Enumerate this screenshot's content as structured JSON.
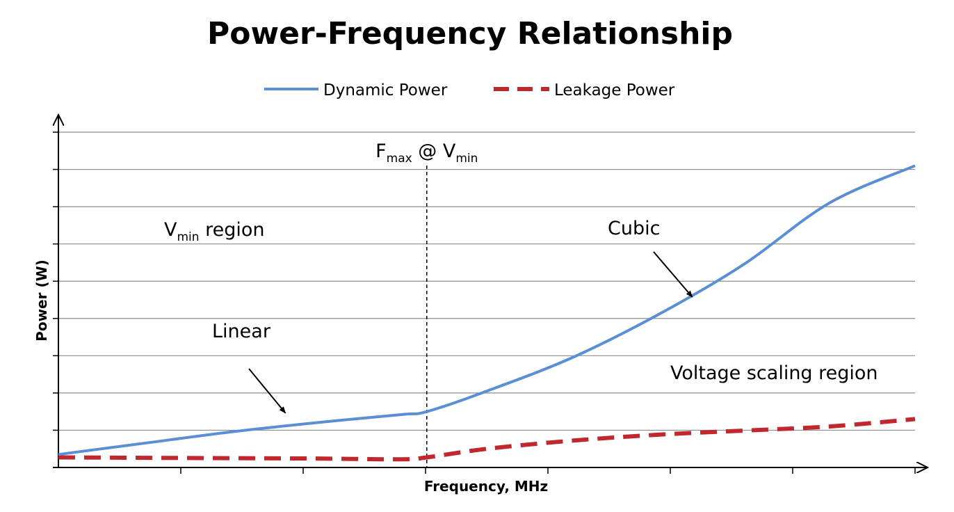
{
  "chart_data": {
    "type": "line",
    "title": "Power-Frequency Relationship",
    "xlabel": "Frequency, MHz",
    "ylabel": "Power (W)",
    "xlim": [
      0,
      1
    ],
    "ylim": [
      0,
      9
    ],
    "grid": true,
    "legend_position": "top",
    "series": [
      {
        "name": "Dynamic Power",
        "color": "#5b8fd4",
        "style": "solid",
        "x": [
          0,
          0.1,
          0.2,
          0.3,
          0.4,
          0.43,
          0.5,
          0.6,
          0.7,
          0.8,
          0.9,
          1.0
        ],
        "y": [
          0.35,
          0.65,
          0.95,
          1.2,
          1.42,
          1.5,
          2.05,
          2.95,
          4.1,
          5.45,
          7.1,
          8.1
        ]
      },
      {
        "name": "Leakage Power",
        "color": "#c0282e",
        "style": "dashed",
        "x": [
          0,
          0.1,
          0.2,
          0.3,
          0.4,
          0.43,
          0.5,
          0.6,
          0.7,
          0.8,
          0.9,
          1.0
        ],
        "y": [
          0.27,
          0.26,
          0.25,
          0.24,
          0.22,
          0.27,
          0.5,
          0.72,
          0.88,
          0.99,
          1.1,
          1.3
        ]
      }
    ],
    "reference_line": {
      "x": 0.43,
      "label_main_1": "F",
      "label_sub_1": "max",
      "label_mid": " @ V",
      "label_sub_2": "min"
    },
    "annotations": {
      "vmin_region": {
        "main": "V",
        "sub": "min",
        "rest": " region"
      },
      "linear": {
        "text": "Linear",
        "arrow_to": [
          0.265,
          1.2
        ]
      },
      "cubic": {
        "text": "Cubic",
        "arrow_to": [
          0.74,
          4.35
        ]
      },
      "voltage_scaling_region": {
        "text": "Voltage scaling region"
      }
    }
  }
}
